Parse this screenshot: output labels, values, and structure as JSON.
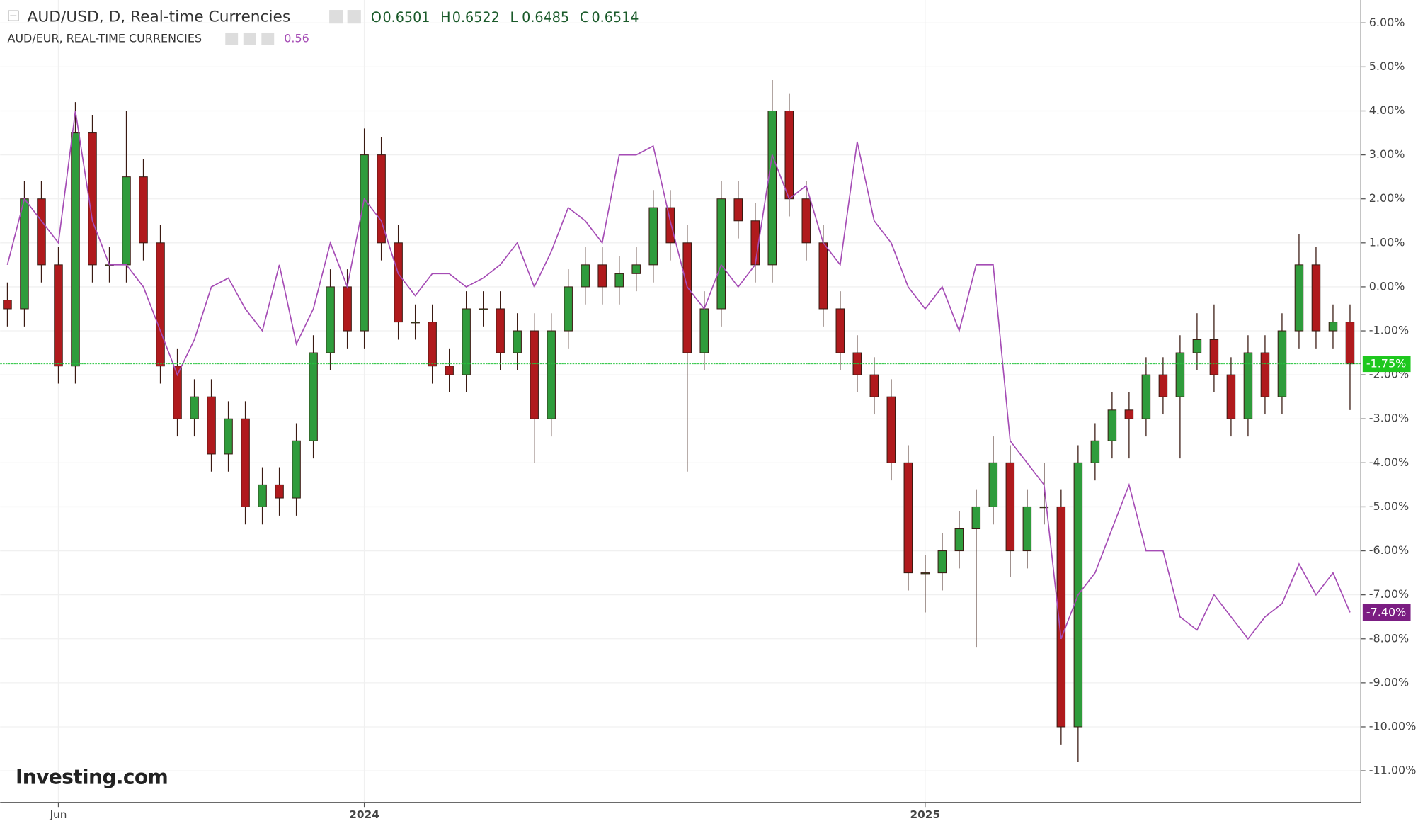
{
  "chart_data": {
    "type": "candlestick",
    "categories": [
      null,
      null,
      null,
      "Jun",
      null,
      null,
      null,
      null,
      null,
      null,
      null,
      null,
      null,
      null,
      null,
      null,
      null,
      null,
      null,
      null,
      null,
      "2024",
      null,
      null,
      null,
      null,
      null,
      null,
      null,
      null,
      null,
      null,
      null,
      null,
      null,
      null,
      null,
      null,
      null,
      null,
      null,
      null,
      null,
      null,
      null,
      null,
      null,
      null,
      null,
      null,
      null,
      null,
      null,
      null,
      "2025",
      null,
      null,
      null,
      null,
      null,
      null,
      null,
      null,
      null,
      null,
      null,
      null,
      null,
      null,
      null,
      null,
      null,
      null,
      null,
      null,
      null,
      null,
      null,
      null,
      null
    ],
    "series": [
      {
        "name": "AUD/USD, D, Real-time Currencies",
        "type": "candlestick",
        "up_color": "#2f9c3c",
        "down_color": "#b01a1d",
        "outline": "#3a1a12",
        "open": [
          -0.3,
          -0.5,
          2.0,
          0.5,
          -1.8,
          3.5,
          0.5,
          0.5,
          2.5,
          1.0,
          -1.8,
          -3.0,
          -2.5,
          -3.8,
          -3.0,
          -5.0,
          -4.5,
          -4.8,
          -3.5,
          -1.5,
          0.0,
          -1.0,
          3.0,
          1.0,
          -0.8,
          -0.8,
          -1.8,
          -2.0,
          -0.5,
          -0.5,
          -1.5,
          -1.0,
          -3.0,
          -1.0,
          0.0,
          0.5,
          0.0,
          0.3,
          0.5,
          1.8,
          1.0,
          -1.5,
          -0.5,
          2.0,
          1.5,
          0.5,
          4.0,
          2.0,
          1.0,
          -0.5,
          -1.5,
          -2.0,
          -2.5,
          -4.0,
          -6.5,
          -6.5,
          -6.0,
          -5.5,
          -5.0,
          -4.0,
          -6.0,
          -5.0,
          -5.0,
          -10.0,
          -4.0,
          -3.5,
          -2.8,
          -3.0,
          -2.0,
          -2.5,
          -1.5,
          -1.2,
          -2.0,
          -3.0,
          -1.5,
          -2.5,
          -1.0,
          0.5,
          -1.0,
          -0.8
        ],
        "high": [
          0.1,
          2.4,
          2.4,
          0.9,
          4.2,
          3.9,
          0.9,
          4.0,
          2.9,
          1.4,
          -1.4,
          -2.1,
          -2.1,
          -2.6,
          -2.6,
          -4.1,
          -4.1,
          -3.1,
          -1.1,
          0.4,
          0.4,
          3.6,
          3.4,
          1.4,
          -0.4,
          -0.4,
          -1.4,
          -0.1,
          -0.1,
          -0.1,
          -0.6,
          -0.6,
          -0.6,
          0.4,
          0.9,
          0.9,
          0.7,
          0.9,
          2.2,
          2.2,
          1.4,
          -0.1,
          2.4,
          2.4,
          1.9,
          4.7,
          4.4,
          2.4,
          1.4,
          -0.1,
          -1.1,
          -1.6,
          -2.1,
          -3.6,
          -6.1,
          -5.6,
          -5.1,
          -4.6,
          -3.4,
          -3.6,
          -4.6,
          -4.0,
          -4.6,
          -3.6,
          -3.1,
          -2.4,
          -2.4,
          -1.6,
          -1.6,
          -1.1,
          -0.6,
          -0.4,
          -1.6,
          -1.1,
          -1.1,
          -0.6,
          1.2,
          0.9,
          -0.4,
          -0.4
        ],
        "low": [
          -0.9,
          -0.9,
          0.1,
          -2.2,
          -2.2,
          0.1,
          0.1,
          0.1,
          0.6,
          -2.2,
          -3.4,
          -3.4,
          -4.2,
          -4.2,
          -5.4,
          -5.4,
          -5.2,
          -5.2,
          -3.9,
          -1.9,
          -1.4,
          -1.4,
          0.6,
          -1.2,
          -1.2,
          -2.2,
          -2.4,
          -2.4,
          -0.9,
          -1.9,
          -1.9,
          -4.0,
          -3.4,
          -1.4,
          -0.4,
          -0.4,
          -0.4,
          -0.1,
          0.1,
          0.6,
          -4.2,
          -1.9,
          -0.9,
          1.1,
          0.1,
          0.1,
          1.6,
          0.6,
          -0.9,
          -1.9,
          -2.4,
          -2.9,
          -4.4,
          -6.9,
          -7.4,
          -6.9,
          -6.4,
          -8.2,
          -5.4,
          -6.6,
          -6.4,
          -5.4,
          -10.4,
          -10.8,
          -4.4,
          -3.9,
          -3.9,
          -3.4,
          -2.9,
          -3.9,
          -1.9,
          -2.4,
          -3.4,
          -3.4,
          -2.9,
          -2.9,
          -1.4,
          -1.4,
          -1.4,
          -2.8
        ],
        "close": [
          -0.5,
          2.0,
          0.5,
          -1.8,
          3.5,
          0.5,
          0.5,
          2.5,
          1.0,
          -1.8,
          -3.0,
          -2.5,
          -3.8,
          -3.0,
          -5.0,
          -4.5,
          -4.8,
          -3.5,
          -1.5,
          0.0,
          -1.0,
          3.0,
          1.0,
          -0.8,
          -0.8,
          -1.8,
          -2.0,
          -0.5,
          -0.5,
          -1.5,
          -1.0,
          -3.0,
          -1.0,
          0.0,
          0.5,
          0.0,
          0.3,
          0.5,
          1.8,
          1.0,
          -1.5,
          -0.5,
          2.0,
          1.5,
          0.5,
          4.0,
          2.0,
          1.0,
          -0.5,
          -1.5,
          -2.0,
          -2.5,
          -4.0,
          -6.5,
          -6.5,
          -6.0,
          -5.5,
          -5.0,
          -4.0,
          -6.0,
          -5.0,
          -5.0,
          -10.0,
          -4.0,
          -3.5,
          -2.8,
          -3.0,
          -2.0,
          -2.5,
          -1.5,
          -1.2,
          -2.0,
          -3.0,
          -1.5,
          -2.5,
          -1.0,
          0.5,
          -1.0,
          -0.8,
          -1.75
        ],
        "ohlc_labels": [
          {
            "label": "O",
            "value": 0.6501
          },
          {
            "label": "H",
            "value": 0.6522
          },
          {
            "label": "L",
            "value": 0.6485
          },
          {
            "label": "C",
            "value": 0.6514
          }
        ],
        "last_label": {
          "value": -1.75,
          "label": "-1.75%"
        }
      },
      {
        "name": "AUD/EUR, REAL-TIME CURRENCIES",
        "type": "line",
        "color": "#a54cb5",
        "last_value": 0.56,
        "values": [
          0.5,
          2.0,
          1.5,
          1.0,
          4.0,
          1.5,
          0.5,
          0.5,
          0.0,
          -1.0,
          -2.0,
          -1.2,
          0.0,
          0.2,
          -0.5,
          -1.0,
          0.5,
          -1.3,
          -0.5,
          1.0,
          0.0,
          2.0,
          1.5,
          0.3,
          -0.2,
          0.3,
          0.3,
          0.0,
          0.2,
          0.5,
          1.0,
          0.0,
          0.8,
          1.8,
          1.5,
          1.0,
          3.0,
          3.0,
          3.2,
          1.5,
          0.0,
          -0.5,
          0.5,
          0.0,
          0.5,
          3.0,
          2.0,
          2.3,
          1.0,
          0.5,
          3.3,
          1.5,
          1.0,
          0.0,
          -0.5,
          0.0,
          -1.0,
          0.5,
          0.5,
          -3.5,
          -4.0,
          -4.5,
          -8.0,
          -7.0,
          -6.5,
          -5.5,
          -4.5,
          -6.0,
          -6.0,
          -7.5,
          -7.8,
          -7.0,
          -7.5,
          -8.0,
          -7.5,
          -7.2,
          -6.3,
          -7.0,
          -6.5,
          -7.4
        ],
        "last_label": {
          "value": -7.4,
          "label": "-7.40%"
        }
      }
    ],
    "ylim": [
      -11.72,
      6.52
    ],
    "yticks": [
      {
        "value": 6,
        "label": "6.00%"
      },
      {
        "value": 5,
        "label": "5.00%"
      },
      {
        "value": 4,
        "label": "4.00%"
      },
      {
        "value": 3,
        "label": "3.00%"
      },
      {
        "value": 2,
        "label": "2.00%"
      },
      {
        "value": 1,
        "label": "1.00%"
      },
      {
        "value": 0,
        "label": "0.00%"
      },
      {
        "value": -1,
        "label": "-1.00%"
      },
      {
        "value": -2,
        "label": "-2.00%"
      },
      {
        "value": -3,
        "label": "-3.00%"
      },
      {
        "value": -4,
        "label": "-4.00%"
      },
      {
        "value": -5,
        "label": "-5.00%"
      },
      {
        "value": -6,
        "label": "-6.00%"
      },
      {
        "value": -7,
        "label": "-7.00%"
      },
      {
        "value": -8,
        "label": "-8.00%"
      },
      {
        "value": -9,
        "label": "-9.00%"
      },
      {
        "value": -10,
        "label": "-10.00%"
      },
      {
        "value": -11,
        "label": "-11.00%"
      }
    ],
    "grid": true,
    "watermark": "Investing.com"
  }
}
